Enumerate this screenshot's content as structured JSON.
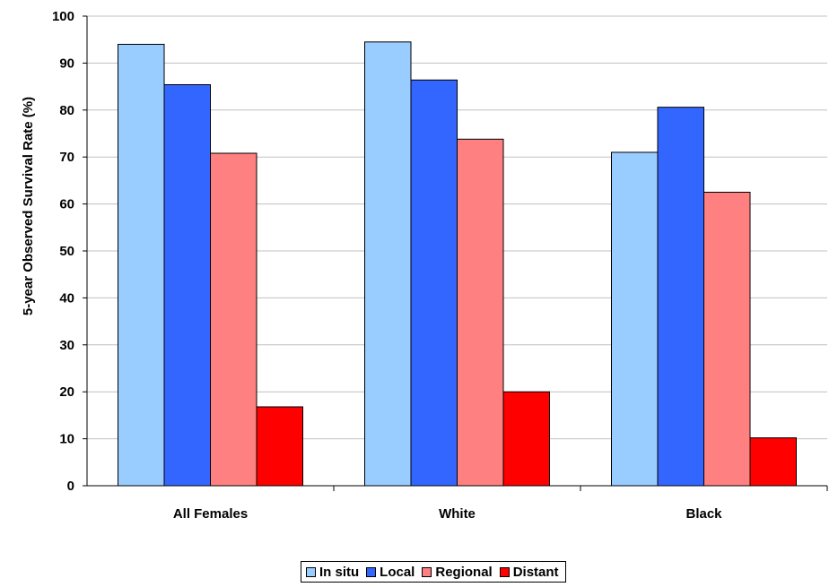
{
  "chart_data": {
    "type": "bar",
    "categories": [
      "All Females",
      "White",
      "Black"
    ],
    "series": [
      {
        "name": "In situ",
        "color": "#99CCFF",
        "values": [
          94.0,
          94.5,
          71.0
        ]
      },
      {
        "name": "Local",
        "color": "#3366FF",
        "values": [
          85.4,
          86.4,
          80.6
        ]
      },
      {
        "name": "Regional",
        "color": "#FF8080",
        "values": [
          70.8,
          73.8,
          62.5
        ]
      },
      {
        "name": "Distant",
        "color": "#FF0000",
        "values": [
          16.8,
          20.0,
          10.2
        ]
      }
    ],
    "ylabel": "5-year Observed Survival Rate (%)",
    "xlabel": "",
    "title": "",
    "ylim": [
      0,
      100
    ],
    "yticks": [
      0,
      10,
      20,
      30,
      40,
      50,
      60,
      70,
      80,
      90,
      100
    ],
    "grid": true,
    "legend_position": "bottom"
  }
}
